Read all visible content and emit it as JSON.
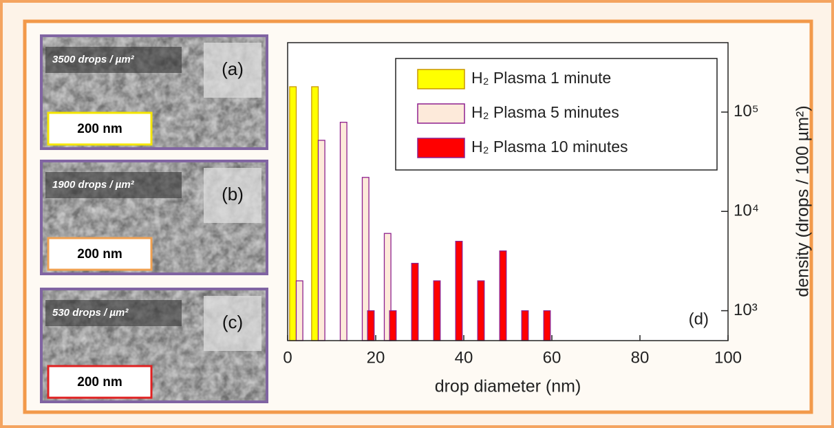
{
  "panels": [
    {
      "density": "3500 drops / µm²",
      "label": "(a)",
      "scale": "200 nm"
    },
    {
      "density": "1900 drops / µm²",
      "label": "(b)",
      "scale": "200 nm"
    },
    {
      "density": "530 drops / µm²",
      "label": "(c)",
      "scale": "200 nm"
    }
  ],
  "chart_data": {
    "type": "bar",
    "annotation": "(d)",
    "x_label": "drop diameter (nm)",
    "y_label": "density (drops / 100 µm²)",
    "xlim": [
      0,
      100
    ],
    "xticks": [
      0,
      20,
      40,
      60,
      80,
      100
    ],
    "ylim": [
      500,
      500000
    ],
    "log_y": true,
    "yticks": [
      {
        "value": 1000,
        "label": "10³"
      },
      {
        "value": 10000,
        "label": "10⁴"
      },
      {
        "value": 100000,
        "label": "10⁵"
      }
    ],
    "legend": "upper right",
    "series": [
      {
        "name": "H₂ Plasma 1 minute",
        "color": "#ffff00",
        "edge": "#c89600",
        "x": [
          1.2,
          6.2
        ],
        "values": [
          180000,
          180000
        ]
      },
      {
        "name": "H₂ Plasma 5 minutes",
        "color": "#fdeada",
        "edge": "#8e1f8e",
        "x": [
          2.7,
          7.7,
          12.7,
          17.7,
          22.7
        ],
        "values": [
          2000,
          52000,
          79000,
          22000,
          6000
        ]
      },
      {
        "name": "H₂ Plasma 10 minutes",
        "color": "#ff0000",
        "edge": "#8e1f8e",
        "x": [
          18.9,
          23.9,
          28.9,
          33.9,
          38.9,
          43.9,
          48.9,
          53.9,
          58.9
        ],
        "values": [
          1000,
          1000,
          3000,
          2000,
          5000,
          2000,
          4000,
          1000,
          1000
        ]
      }
    ]
  }
}
